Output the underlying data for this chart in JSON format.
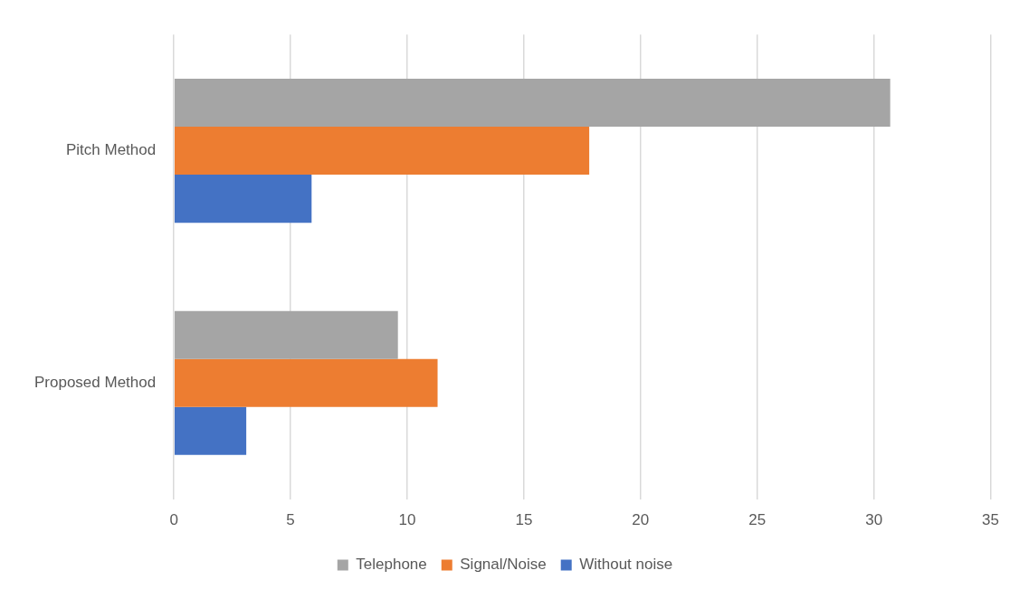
{
  "chart_data": {
    "type": "bar",
    "orientation": "horizontal",
    "categories": [
      "Pitch Method",
      "Proposed Method"
    ],
    "series": [
      {
        "name": "Telephone",
        "color": "#a5a5a5",
        "values": [
          30.7,
          9.6
        ]
      },
      {
        "name": "Signal/Noise",
        "color": "#ed7d31",
        "values": [
          17.8,
          11.3
        ]
      },
      {
        "name": "Without noise",
        "color": "#4472c4",
        "values": [
          5.9,
          3.1
        ]
      }
    ],
    "xlim": [
      0,
      35
    ],
    "xticks": [
      0,
      5,
      10,
      15,
      20,
      25,
      30,
      35
    ],
    "grid": "x",
    "legend": "bottom"
  }
}
